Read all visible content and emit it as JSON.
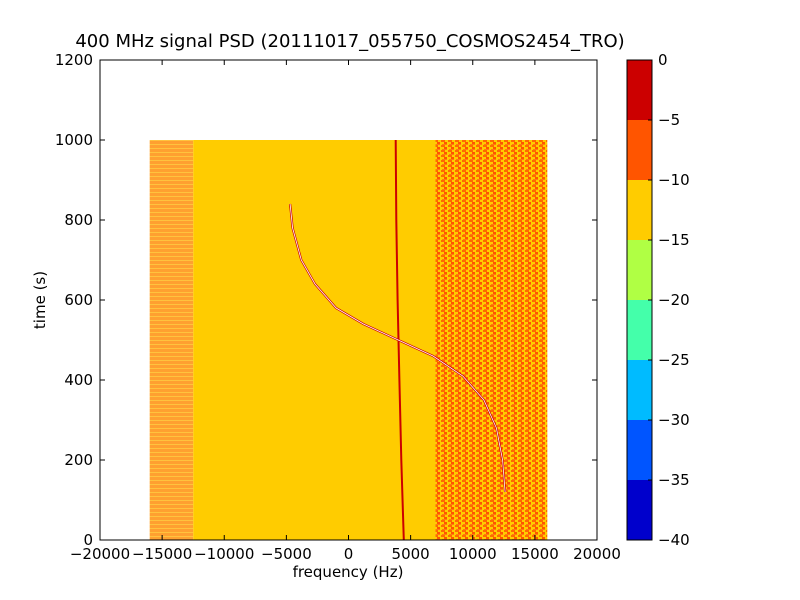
{
  "chart_data": {
    "type": "heatmap",
    "title": "400 MHz signal PSD (20111017_055750_COSMOS2454_TRO)",
    "xlabel": "frequency (Hz)",
    "ylabel": "time (s)",
    "xlim": [
      -20000,
      20000
    ],
    "ylim": [
      0,
      1200
    ],
    "xticks": [
      -20000,
      -15000,
      -10000,
      -5000,
      0,
      5000,
      10000,
      15000,
      20000
    ],
    "xtick_labels": [
      "−20000",
      "−15000",
      "−10000",
      "−5000",
      "0",
      "5000",
      "10000",
      "15000",
      "20000"
    ],
    "yticks": [
      0,
      200,
      400,
      600,
      800,
      1000,
      1200
    ],
    "ytick_labels": [
      "0",
      "200",
      "400",
      "600",
      "800",
      "1000",
      "1200"
    ],
    "data_extent": {
      "x": [
        -16000,
        16000
      ],
      "y": [
        0,
        1000
      ]
    },
    "background_bands": [
      {
        "x": [
          -16000,
          -12500
        ],
        "level": -7.5
      },
      {
        "x": [
          -12500,
          7000
        ],
        "level": -12.5
      },
      {
        "x": [
          7000,
          16000
        ],
        "level": -7.5
      }
    ],
    "carrier_line": {
      "level": -2.5,
      "points": [
        [
          3800,
          1000
        ],
        [
          3850,
          800
        ],
        [
          3950,
          600
        ],
        [
          4100,
          400
        ],
        [
          4250,
          200
        ],
        [
          4450,
          0
        ]
      ]
    },
    "doppler_curve": {
      "level": -2.5,
      "points": [
        [
          -4700,
          840
        ],
        [
          -4500,
          780
        ],
        [
          -3800,
          700
        ],
        [
          -2700,
          640
        ],
        [
          -1000,
          580
        ],
        [
          1200,
          540
        ],
        [
          4000,
          500
        ],
        [
          6800,
          460
        ],
        [
          9200,
          410
        ],
        [
          10900,
          350
        ],
        [
          11900,
          280
        ],
        [
          12400,
          200
        ],
        [
          12600,
          120
        ]
      ]
    },
    "colorbar": {
      "range": [
        -40,
        0
      ],
      "ticks": [
        0,
        -5,
        -10,
        -15,
        -20,
        -25,
        -30,
        -35,
        -40
      ],
      "tick_labels": [
        "0",
        "−5",
        "−10",
        "−15",
        "−20",
        "−25",
        "−30",
        "−35",
        "−40"
      ],
      "bands": [
        {
          "from": -40,
          "to": -35,
          "color": "#0000cc"
        },
        {
          "from": -35,
          "to": -30,
          "color": "#0055ff"
        },
        {
          "from": -30,
          "to": -25,
          "color": "#00bbff"
        },
        {
          "from": -25,
          "to": -20,
          "color": "#44ffaa"
        },
        {
          "from": -20,
          "to": -15,
          "color": "#b0ff44"
        },
        {
          "from": -15,
          "to": -10,
          "color": "#ffcc00"
        },
        {
          "from": -10,
          "to": -5,
          "color": "#ff5500"
        },
        {
          "from": -5,
          "to": 0,
          "color": "#cc0000"
        }
      ]
    }
  }
}
